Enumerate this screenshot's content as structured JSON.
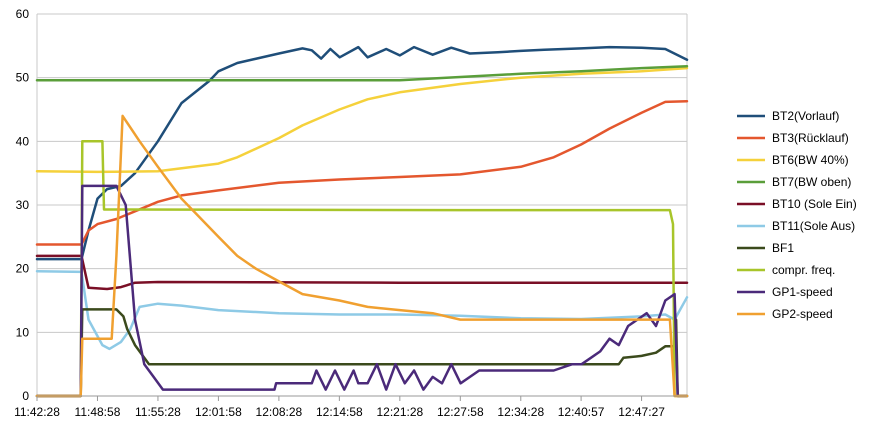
{
  "chart_data": {
    "type": "line",
    "title": "",
    "xlabel": "",
    "ylabel": "",
    "ylim": [
      0,
      60
    ],
    "yticks": [
      "0",
      "10",
      "20",
      "30",
      "40",
      "50",
      "60"
    ],
    "xticks": [
      "11:42:28",
      "11:48:58",
      "11:55:28",
      "12:01:58",
      "12:08:28",
      "12:14:58",
      "12:21:28",
      "12:27:58",
      "12:34:28",
      "12:40:57",
      "12:47:27"
    ],
    "x_range": [
      "11:42:28",
      "12:52:20"
    ],
    "grid": "horizontal",
    "legend_position": "right",
    "series": [
      {
        "name": "BT2(Vorlauf)",
        "color": "#1f4e79",
        "points": [
          [
            "11:42:28",
            21.5
          ],
          [
            "11:47:15",
            21.5
          ],
          [
            "11:48:00",
            26
          ],
          [
            "11:48:58",
            31
          ],
          [
            "11:50:00",
            32.5
          ],
          [
            "11:51:30",
            33
          ],
          [
            "11:53:00",
            35
          ],
          [
            "11:55:28",
            40
          ],
          [
            "11:58:00",
            46
          ],
          [
            "12:01:00",
            49.5
          ],
          [
            "12:01:58",
            51
          ],
          [
            "12:04:00",
            52.3
          ],
          [
            "12:08:28",
            53.8
          ],
          [
            "12:11:00",
            54.6
          ],
          [
            "12:12:00",
            54.3
          ],
          [
            "12:13:00",
            53
          ],
          [
            "12:14:00",
            54.5
          ],
          [
            "12:15:00",
            53.2
          ],
          [
            "12:17:00",
            54.8
          ],
          [
            "12:18:00",
            53.2
          ],
          [
            "12:20:00",
            54.5
          ],
          [
            "12:21:28",
            53.5
          ],
          [
            "12:23:00",
            54.8
          ],
          [
            "12:25:00",
            53.6
          ],
          [
            "12:27:00",
            54.7
          ],
          [
            "12:29:00",
            53.8
          ],
          [
            "12:32:00",
            54
          ],
          [
            "12:34:28",
            54.2
          ],
          [
            "12:37:00",
            54.4
          ],
          [
            "12:40:57",
            54.6
          ],
          [
            "12:44:00",
            54.8
          ],
          [
            "12:47:27",
            54.7
          ],
          [
            "12:50:00",
            54.5
          ],
          [
            "12:52:20",
            52.8
          ]
        ]
      },
      {
        "name": "BT3(Rücklauf)",
        "color": "#e4572e",
        "points": [
          [
            "11:42:28",
            23.8
          ],
          [
            "11:47:15",
            23.8
          ],
          [
            "11:48:00",
            26
          ],
          [
            "11:48:58",
            27
          ],
          [
            "11:51:00",
            27.8
          ],
          [
            "11:55:28",
            30.5
          ],
          [
            "11:58:00",
            31.5
          ],
          [
            "12:01:58",
            32.3
          ],
          [
            "12:08:28",
            33.5
          ],
          [
            "12:14:58",
            34
          ],
          [
            "12:21:28",
            34.4
          ],
          [
            "12:27:58",
            34.8
          ],
          [
            "12:34:28",
            36
          ],
          [
            "12:38:00",
            37.5
          ],
          [
            "12:40:57",
            39.5
          ],
          [
            "12:44:00",
            42
          ],
          [
            "12:47:27",
            44.5
          ],
          [
            "12:50:00",
            46.2
          ],
          [
            "12:52:20",
            46.3
          ]
        ]
      },
      {
        "name": "BT6(BW 40%)",
        "color": "#f5d13b",
        "points": [
          [
            "11:42:28",
            35.3
          ],
          [
            "11:48:58",
            35.2
          ],
          [
            "11:55:28",
            35.3
          ],
          [
            "12:01:58",
            36.5
          ],
          [
            "12:04:00",
            37.5
          ],
          [
            "12:08:28",
            40.5
          ],
          [
            "12:11:00",
            42.5
          ],
          [
            "12:14:58",
            45
          ],
          [
            "12:18:00",
            46.6
          ],
          [
            "12:21:28",
            47.7
          ],
          [
            "12:27:58",
            49
          ],
          [
            "12:34:28",
            50
          ],
          [
            "12:40:57",
            50.6
          ],
          [
            "12:47:27",
            51
          ],
          [
            "12:52:20",
            51.5
          ]
        ]
      },
      {
        "name": "BT7(BW oben)",
        "color": "#5a9e3a",
        "points": [
          [
            "11:42:28",
            49.6
          ],
          [
            "12:01:58",
            49.6
          ],
          [
            "12:21:28",
            49.6
          ],
          [
            "12:27:58",
            50.1
          ],
          [
            "12:34:28",
            50.6
          ],
          [
            "12:40:57",
            51
          ],
          [
            "12:47:27",
            51.5
          ],
          [
            "12:52:20",
            51.8
          ]
        ]
      },
      {
        "name": "BT10 (Sole Ein)",
        "color": "#7a0f26",
        "points": [
          [
            "11:42:28",
            22
          ],
          [
            "11:47:15",
            22
          ],
          [
            "11:48:00",
            17
          ],
          [
            "11:50:00",
            16.8
          ],
          [
            "11:51:30",
            17.1
          ],
          [
            "11:53:00",
            17.8
          ],
          [
            "11:55:28",
            17.9
          ],
          [
            "12:21:28",
            17.8
          ],
          [
            "12:52:20",
            17.8
          ]
        ]
      },
      {
        "name": "BT11(Sole Aus)",
        "color": "#8ecae6",
        "points": [
          [
            "11:42:28",
            19.6
          ],
          [
            "11:47:15",
            19.5
          ],
          [
            "11:48:00",
            12
          ],
          [
            "11:49:30",
            8
          ],
          [
            "11:50:15",
            7.4
          ],
          [
            "11:51:30",
            8.5
          ],
          [
            "11:52:30",
            10.5
          ],
          [
            "11:53:30",
            14
          ],
          [
            "11:55:28",
            14.5
          ],
          [
            "11:58:00",
            14.2
          ],
          [
            "12:01:58",
            13.5
          ],
          [
            "12:08:28",
            13
          ],
          [
            "12:14:58",
            12.8
          ],
          [
            "12:21:28",
            12.8
          ],
          [
            "12:27:58",
            12.6
          ],
          [
            "12:34:28",
            12.2
          ],
          [
            "12:40:57",
            12.1
          ],
          [
            "12:47:27",
            12.5
          ],
          [
            "12:50:00",
            12.8
          ],
          [
            "12:51:00",
            12
          ],
          [
            "12:52:20",
            15.5
          ]
        ]
      },
      {
        "name": "BF1",
        "color": "#3b4a1c",
        "points": [
          [
            "11:42:28",
            0
          ],
          [
            "11:47:10",
            0
          ],
          [
            "11:47:20",
            13.6
          ],
          [
            "11:51:00",
            13.6
          ],
          [
            "11:51:45",
            12.5
          ],
          [
            "11:52:10",
            10.5
          ],
          [
            "11:53:00",
            8
          ],
          [
            "11:54:30",
            5
          ],
          [
            "12:45:00",
            5
          ],
          [
            "12:45:30",
            6
          ],
          [
            "12:47:27",
            6.3
          ],
          [
            "12:49:00",
            6.8
          ],
          [
            "12:50:00",
            7.8
          ],
          [
            "12:51:00",
            7.8
          ],
          [
            "12:51:10",
            12
          ],
          [
            "12:51:20",
            0
          ],
          [
            "12:52:20",
            0
          ]
        ]
      },
      {
        "name": "compr. freq.",
        "color": "#a8c52a",
        "points": [
          [
            "11:42:28",
            0
          ],
          [
            "11:47:10",
            0
          ],
          [
            "11:47:20",
            40
          ],
          [
            "11:49:30",
            40
          ],
          [
            "11:49:40",
            29.3
          ],
          [
            "12:27:58",
            29.2
          ],
          [
            "12:50:30",
            29.2
          ],
          [
            "12:50:50",
            27
          ],
          [
            "12:51:00",
            0
          ],
          [
            "12:52:20",
            0
          ]
        ]
      },
      {
        "name": "GP1-speed",
        "color": "#4b2a7a",
        "points": [
          [
            "11:42:28",
            0
          ],
          [
            "11:47:10",
            0
          ],
          [
            "11:47:20",
            33
          ],
          [
            "11:51:00",
            33
          ],
          [
            "11:52:00",
            30
          ],
          [
            "11:53:00",
            12
          ],
          [
            "11:54:00",
            5
          ],
          [
            "11:55:00",
            3
          ],
          [
            "11:56:00",
            1
          ],
          [
            "12:01:58",
            1
          ],
          [
            "12:08:00",
            1
          ],
          [
            "12:08:10",
            2
          ],
          [
            "12:12:00",
            2
          ],
          [
            "12:12:30",
            4
          ],
          [
            "12:13:30",
            1
          ],
          [
            "12:14:30",
            4
          ],
          [
            "12:15:30",
            1
          ],
          [
            "12:16:30",
            4
          ],
          [
            "12:17:00",
            2
          ],
          [
            "12:18:00",
            2
          ],
          [
            "12:19:00",
            5
          ],
          [
            "12:20:00",
            1
          ],
          [
            "12:21:00",
            5
          ],
          [
            "12:22:00",
            2
          ],
          [
            "12:23:00",
            4
          ],
          [
            "12:24:00",
            1
          ],
          [
            "12:25:00",
            3
          ],
          [
            "12:26:00",
            2
          ],
          [
            "12:27:00",
            5
          ],
          [
            "12:28:00",
            2
          ],
          [
            "12:30:00",
            4
          ],
          [
            "12:34:28",
            4
          ],
          [
            "12:38:00",
            4
          ],
          [
            "12:40:00",
            5
          ],
          [
            "12:41:00",
            5
          ],
          [
            "12:42:00",
            6
          ],
          [
            "12:43:00",
            7
          ],
          [
            "12:44:00",
            9
          ],
          [
            "12:45:00",
            8
          ],
          [
            "12:46:00",
            11
          ],
          [
            "12:47:00",
            12
          ],
          [
            "12:48:00",
            13
          ],
          [
            "12:49:00",
            11
          ],
          [
            "12:50:00",
            15
          ],
          [
            "12:51:00",
            16
          ],
          [
            "12:51:20",
            0
          ],
          [
            "12:52:20",
            0
          ]
        ]
      },
      {
        "name": "GP2-speed",
        "color": "#f0a030",
        "points": [
          [
            "11:42:28",
            0
          ],
          [
            "11:47:10",
            0
          ],
          [
            "11:47:20",
            9
          ],
          [
            "11:50:30",
            9
          ],
          [
            "11:51:00",
            22
          ],
          [
            "11:51:40",
            44
          ],
          [
            "11:53:30",
            40
          ],
          [
            "11:55:28",
            36
          ],
          [
            "11:58:00",
            31
          ],
          [
            "12:01:58",
            25
          ],
          [
            "12:04:00",
            22
          ],
          [
            "12:06:00",
            20
          ],
          [
            "12:08:28",
            18
          ],
          [
            "12:11:00",
            16
          ],
          [
            "12:14:58",
            15
          ],
          [
            "12:18:00",
            14
          ],
          [
            "12:21:28",
            13.5
          ],
          [
            "12:25:00",
            13
          ],
          [
            "12:27:58",
            12
          ],
          [
            "12:34:28",
            12
          ],
          [
            "12:40:57",
            12
          ],
          [
            "12:47:27",
            12
          ],
          [
            "12:50:30",
            12
          ],
          [
            "12:51:00",
            0
          ],
          [
            "12:52:20",
            0
          ]
        ]
      }
    ]
  }
}
